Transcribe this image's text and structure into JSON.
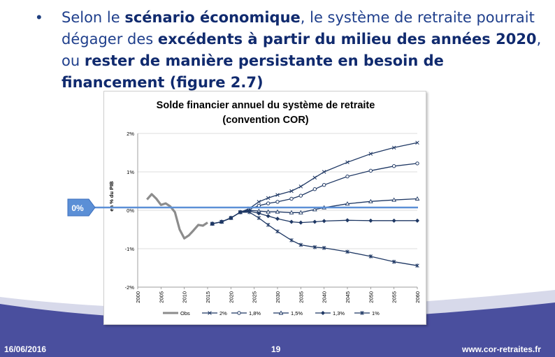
{
  "slide": {
    "bullet": {
      "parts": [
        {
          "text": "Selon le ",
          "bold": false
        },
        {
          "text": "scénario économique",
          "bold": true
        },
        {
          "text": ", le système de retraite pourrait dégager des ",
          "bold": false
        },
        {
          "text": "excédents à partir du milieu des années 2020",
          "bold": true
        },
        {
          "text": ", ou ",
          "bold": false
        },
        {
          "text": "rester de manière persistante en besoin de financement (figure 2.7)",
          "bold": true
        }
      ]
    },
    "callout_label": "0%",
    "footer": {
      "date": "16/06/2016",
      "page": "19",
      "site": "www.cor-retraites.fr"
    },
    "colors": {
      "text": "#1f3f8c",
      "bold_text": "#102a6e",
      "band": "#4a4f9e",
      "band_light": "#d7d9ea",
      "series_dark": "#1f3864",
      "obs": "#8c8c8c",
      "callout": "#5b8fd6"
    }
  },
  "chart_data": {
    "type": "line",
    "title": "Solde financier annuel du système de retraite",
    "subtitle": "(convention COR)",
    "ylabel": "en % du PIB",
    "xlabel": "",
    "ylim": [
      -2,
      2
    ],
    "xlim": [
      2000,
      2060
    ],
    "yticks": [
      {
        "v": 2,
        "label": "2%"
      },
      {
        "v": 1,
        "label": "1%"
      },
      {
        "v": 0,
        "label": "0%"
      },
      {
        "v": -1,
        "label": "-1%"
      },
      {
        "v": -2,
        "label": "-2%"
      }
    ],
    "xticks": [
      "2000",
      "2005",
      "2010",
      "2015",
      "2020",
      "2025",
      "2030",
      "2035",
      "2040",
      "2045",
      "2050",
      "2055",
      "2060"
    ],
    "grid": true,
    "legend_position": "bottom",
    "series": [
      {
        "name": "Obs",
        "marker": "none",
        "color": "#8c8c8c",
        "points": [
          [
            2002,
            0.28
          ],
          [
            2003,
            0.42
          ],
          [
            2004,
            0.3
          ],
          [
            2005,
            0.14
          ],
          [
            2006,
            0.18
          ],
          [
            2007,
            0.1
          ],
          [
            2008,
            -0.05
          ],
          [
            2009,
            -0.5
          ],
          [
            2010,
            -0.73
          ],
          [
            2011,
            -0.65
          ],
          [
            2012,
            -0.52
          ],
          [
            2013,
            -0.38
          ],
          [
            2014,
            -0.4
          ],
          [
            2015,
            -0.32
          ]
        ]
      },
      {
        "name": "2%",
        "marker": "x",
        "color": "#1f3864",
        "points": [
          [
            2016,
            -0.35
          ],
          [
            2018,
            -0.3
          ],
          [
            2020,
            -0.2
          ],
          [
            2022,
            -0.05
          ],
          [
            2024,
            0.05
          ],
          [
            2026,
            0.22
          ],
          [
            2028,
            0.32
          ],
          [
            2030,
            0.4
          ],
          [
            2033,
            0.5
          ],
          [
            2035,
            0.62
          ],
          [
            2038,
            0.85
          ],
          [
            2040,
            1.0
          ],
          [
            2045,
            1.25
          ],
          [
            2050,
            1.47
          ],
          [
            2055,
            1.63
          ],
          [
            2060,
            1.76
          ]
        ]
      },
      {
        "name": "1,8%",
        "marker": "circle",
        "color": "#1f3864",
        "points": [
          [
            2016,
            -0.35
          ],
          [
            2018,
            -0.3
          ],
          [
            2020,
            -0.2
          ],
          [
            2022,
            -0.05
          ],
          [
            2024,
            0.03
          ],
          [
            2026,
            0.12
          ],
          [
            2028,
            0.18
          ],
          [
            2030,
            0.22
          ],
          [
            2033,
            0.3
          ],
          [
            2035,
            0.38
          ],
          [
            2038,
            0.55
          ],
          [
            2040,
            0.66
          ],
          [
            2045,
            0.88
          ],
          [
            2050,
            1.03
          ],
          [
            2055,
            1.15
          ],
          [
            2060,
            1.22
          ]
        ]
      },
      {
        "name": "1,5%",
        "marker": "triangle",
        "color": "#1f3864",
        "points": [
          [
            2016,
            -0.35
          ],
          [
            2018,
            -0.3
          ],
          [
            2020,
            -0.2
          ],
          [
            2022,
            -0.05
          ],
          [
            2024,
            0.0
          ],
          [
            2026,
            -0.02
          ],
          [
            2028,
            -0.04
          ],
          [
            2030,
            -0.04
          ],
          [
            2033,
            -0.06
          ],
          [
            2035,
            -0.06
          ],
          [
            2038,
            0.02
          ],
          [
            2040,
            0.07
          ],
          [
            2045,
            0.17
          ],
          [
            2050,
            0.23
          ],
          [
            2055,
            0.27
          ],
          [
            2060,
            0.3
          ]
        ]
      },
      {
        "name": "1,3%",
        "marker": "diamond",
        "color": "#1f3864",
        "points": [
          [
            2016,
            -0.35
          ],
          [
            2018,
            -0.3
          ],
          [
            2020,
            -0.2
          ],
          [
            2022,
            -0.05
          ],
          [
            2024,
            -0.02
          ],
          [
            2026,
            -0.08
          ],
          [
            2028,
            -0.15
          ],
          [
            2030,
            -0.22
          ],
          [
            2033,
            -0.3
          ],
          [
            2035,
            -0.32
          ],
          [
            2038,
            -0.3
          ],
          [
            2040,
            -0.28
          ],
          [
            2045,
            -0.26
          ],
          [
            2050,
            -0.27
          ],
          [
            2055,
            -0.27
          ],
          [
            2060,
            -0.27
          ]
        ]
      },
      {
        "name": "1%",
        "marker": "star",
        "color": "#1f3864",
        "points": [
          [
            2016,
            -0.35
          ],
          [
            2018,
            -0.3
          ],
          [
            2020,
            -0.2
          ],
          [
            2022,
            -0.05
          ],
          [
            2024,
            -0.05
          ],
          [
            2026,
            -0.2
          ],
          [
            2028,
            -0.38
          ],
          [
            2030,
            -0.55
          ],
          [
            2033,
            -0.78
          ],
          [
            2035,
            -0.9
          ],
          [
            2038,
            -0.96
          ],
          [
            2040,
            -0.98
          ],
          [
            2045,
            -1.08
          ],
          [
            2050,
            -1.2
          ],
          [
            2055,
            -1.34
          ],
          [
            2060,
            -1.44
          ]
        ]
      }
    ]
  }
}
